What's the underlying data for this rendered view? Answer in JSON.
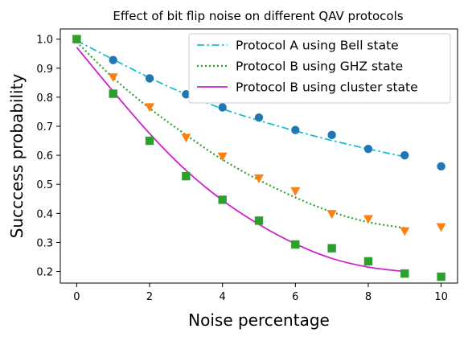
{
  "chart_data": {
    "type": "scatter",
    "title": "Effect of bit flip noise on different QAV protocols",
    "xlabel": "Noise percentage",
    "ylabel": "Succcess probability",
    "xlim": [
      -0.45,
      10.45
    ],
    "ylim": [
      0.16,
      1.035
    ],
    "xticks": [
      "0",
      "2",
      "4",
      "6",
      "8",
      "10"
    ],
    "xtick_values": [
      0,
      2,
      4,
      6,
      8,
      10
    ],
    "yticks": [
      "0.2",
      "0.3",
      "0.4",
      "0.5",
      "0.6",
      "0.7",
      "0.8",
      "0.9",
      "1.0"
    ],
    "ytick_values": [
      0.2,
      0.3,
      0.4,
      0.5,
      0.6,
      0.7,
      0.8,
      0.9,
      1.0
    ],
    "grid": false,
    "legend_position": "top-right",
    "series": [
      {
        "name": "Protocol A using Bell state",
        "color": "#17becf",
        "marker_color": "#1f77b4",
        "line_style": "dashdot",
        "marker": "circle",
        "x": [
          0,
          1,
          2,
          3,
          4,
          5,
          6,
          7,
          8,
          9,
          10
        ],
        "y": [
          1.0,
          0.928,
          0.865,
          0.81,
          0.765,
          0.73,
          0.687,
          0.67,
          0.622,
          0.6,
          0.562
        ],
        "fit_x": [
          0,
          1,
          2,
          3,
          4,
          5,
          6,
          7,
          8,
          9
        ],
        "fit_y": [
          0.995,
          0.93,
          0.867,
          0.81,
          0.76,
          0.72,
          0.684,
          0.651,
          0.622,
          0.595
        ]
      },
      {
        "name": "Protocol B using GHZ state",
        "color": "#2ca02c",
        "marker_color": "#ff7f0e",
        "line_style": "dotted",
        "marker": "triangle-down",
        "x": [
          0,
          1,
          2,
          3,
          4,
          5,
          6,
          7,
          8,
          9,
          10
        ],
        "y": [
          1.0,
          0.868,
          0.765,
          0.66,
          0.595,
          0.52,
          0.476,
          0.397,
          0.38,
          0.338,
          0.352
        ],
        "fit_x": [
          0,
          1,
          2,
          3,
          4,
          5,
          6,
          7,
          8,
          9
        ],
        "fit_y": [
          0.99,
          0.867,
          0.762,
          0.67,
          0.585,
          0.515,
          0.455,
          0.405,
          0.37,
          0.35
        ]
      },
      {
        "name": "Protocol B using cluster state",
        "color": "#cc22cc",
        "marker_color": "#2ca02c",
        "line_style": "solid",
        "marker": "square",
        "x": [
          0,
          1,
          2,
          3,
          4,
          5,
          6,
          7,
          8,
          9,
          10
        ],
        "y": [
          1.0,
          0.812,
          0.65,
          0.528,
          0.447,
          0.375,
          0.293,
          0.28,
          0.235,
          0.193,
          0.182
        ],
        "fit_x": [
          0,
          1,
          2,
          3,
          4,
          5,
          6,
          7,
          8,
          9
        ],
        "fit_y": [
          0.972,
          0.82,
          0.675,
          0.548,
          0.445,
          0.362,
          0.295,
          0.245,
          0.215,
          0.2
        ]
      }
    ]
  }
}
